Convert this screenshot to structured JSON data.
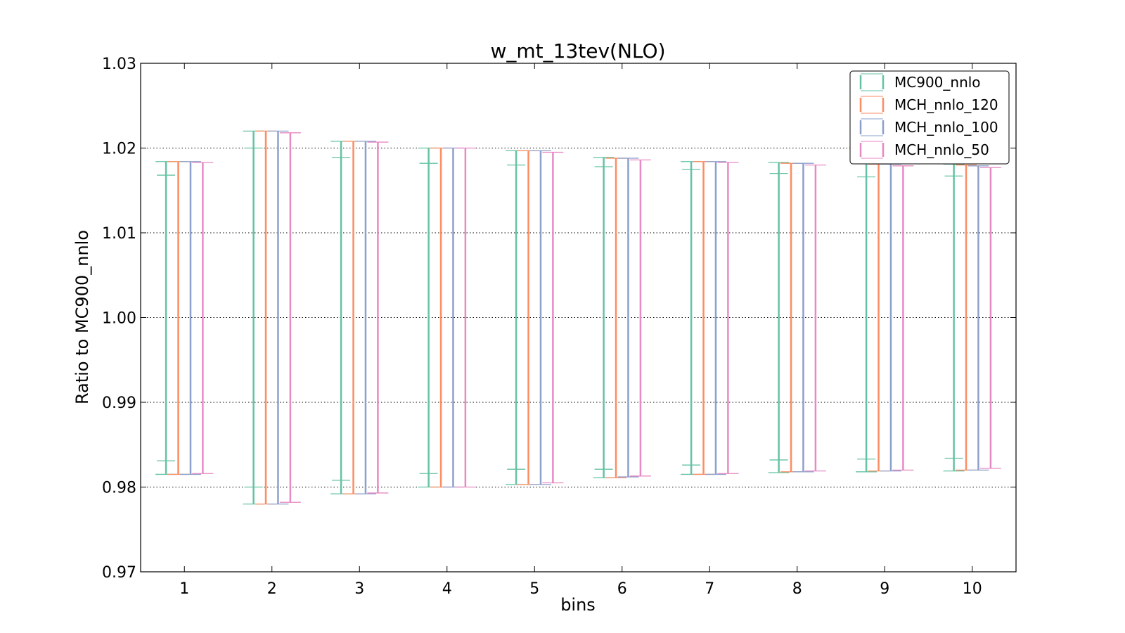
{
  "chart_data": {
    "type": "errorbar",
    "title": "w_mt_13tev(NLO)",
    "xlabel": "bins",
    "ylabel": "Ratio to MC900_nnlo",
    "xlim": [
      0.5,
      10.5
    ],
    "ylim": [
      0.97,
      1.03
    ],
    "xticks": [
      1,
      2,
      3,
      4,
      5,
      6,
      7,
      8,
      9,
      10
    ],
    "yticks": [
      0.97,
      0.98,
      0.99,
      1.0,
      1.01,
      1.02,
      1.03
    ],
    "ytick_labels": [
      "0.97",
      "0.98",
      "0.99",
      "1.00",
      "1.01",
      "1.02",
      "1.03"
    ],
    "grid": "y-dotted",
    "legend_position": "top-right",
    "series": [
      {
        "name": "MC900_nnlo",
        "color": "#66c2a5",
        "offset": -0.21,
        "lower": [
          0.9815,
          0.978,
          0.9792,
          0.98,
          0.9803,
          0.9811,
          0.9815,
          0.9817,
          0.9818,
          0.9819
        ],
        "upper": [
          1.0184,
          1.022,
          1.0208,
          1.02,
          1.0197,
          1.0189,
          1.0184,
          1.0183,
          1.0182,
          1.0181
        ],
        "inner_lower": [
          0.9831,
          0.98,
          0.9808,
          0.9816,
          0.9821,
          0.9821,
          0.9826,
          0.9832,
          0.9833,
          0.9834
        ],
        "inner_upper": [
          1.0168,
          1.02,
          1.0189,
          1.0182,
          1.018,
          1.0178,
          1.0175,
          1.017,
          1.0166,
          1.0167
        ]
      },
      {
        "name": "MCH_nnlo_120",
        "color": "#fc8d62",
        "offset": -0.07,
        "lower": [
          0.9815,
          0.978,
          0.9792,
          0.98,
          0.9803,
          0.9811,
          0.9815,
          0.9818,
          0.9819,
          0.982
        ],
        "upper": [
          1.0184,
          1.022,
          1.0208,
          1.02,
          1.0197,
          1.0188,
          1.0184,
          1.0182,
          1.0181,
          1.018
        ],
        "inner_lower": [],
        "inner_upper": []
      },
      {
        "name": "MCH_nnlo_100",
        "color": "#8da0cb",
        "offset": 0.07,
        "lower": [
          0.9815,
          0.978,
          0.9792,
          0.98,
          0.9803,
          0.9812,
          0.9815,
          0.9818,
          0.9819,
          0.982
        ],
        "upper": [
          1.0184,
          1.022,
          1.0208,
          1.02,
          1.0197,
          1.0188,
          1.0184,
          1.0182,
          1.0181,
          1.0179
        ],
        "inner_lower": [],
        "inner_upper": []
      },
      {
        "name": "MCH_nnlo_50",
        "color": "#e78ac3",
        "offset": 0.21,
        "lower": [
          0.9816,
          0.9782,
          0.9793,
          0.98,
          0.9805,
          0.9813,
          0.9816,
          0.9819,
          0.982,
          0.9822
        ],
        "upper": [
          1.0183,
          1.0218,
          1.0207,
          1.02,
          1.0195,
          1.0186,
          1.0183,
          1.018,
          1.0179,
          1.0177
        ],
        "inner_lower": [],
        "inner_upper": []
      }
    ]
  }
}
